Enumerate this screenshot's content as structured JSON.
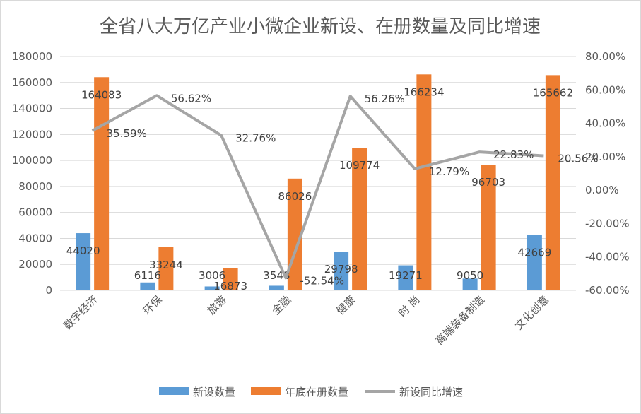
{
  "chart_data": {
    "type": "bar",
    "title": "全省八大万亿产业小微企业新设、在册数量及同比增速",
    "categories": [
      "数字经济",
      "环保",
      "旅游",
      "金融",
      "健康",
      "时 尚",
      "高端装备制造",
      "文化创意"
    ],
    "series": [
      {
        "name": "新设数量",
        "type": "bar",
        "axis": "left",
        "color": "#5b9bd5",
        "values": [
          44020,
          6116,
          3006,
          3548,
          29798,
          19271,
          9050,
          42669
        ],
        "labels": [
          "44020",
          "6116",
          "3006",
          "3548",
          "29798",
          "19271",
          "9050",
          "42669"
        ]
      },
      {
        "name": "年底在册数量",
        "type": "bar",
        "axis": "left",
        "color": "#ed7d31",
        "values": [
          164083,
          33244,
          16873,
          86026,
          109774,
          166234,
          96703,
          165662
        ],
        "labels": [
          "164083",
          "33244",
          "16873",
          "86026",
          "109774",
          "166234",
          "96703",
          "165662"
        ]
      },
      {
        "name": "新设同比增速",
        "type": "line",
        "axis": "right",
        "color": "#a5a5a5",
        "values": [
          35.59,
          56.62,
          32.76,
          -52.54,
          56.26,
          12.79,
          22.83,
          20.56
        ],
        "labels": [
          "35.59%",
          "56.62%",
          "32.76%",
          "-52.54%",
          "56.26%",
          "12.79%",
          "22.83%",
          "20.56%"
        ]
      }
    ],
    "left_axis": {
      "ylim": [
        0,
        180000
      ],
      "ticks": [
        "0",
        "20000",
        "40000",
        "60000",
        "80000",
        "100000",
        "120000",
        "140000",
        "160000",
        "180000"
      ]
    },
    "right_axis": {
      "ylim": [
        -60,
        80
      ],
      "ticks": [
        "-60.00%",
        "-40.00%",
        "-20.00%",
        "0.00%",
        "20.00%",
        "40.00%",
        "60.00%",
        "80.00%"
      ]
    },
    "grid": true,
    "legend": "bottom"
  }
}
